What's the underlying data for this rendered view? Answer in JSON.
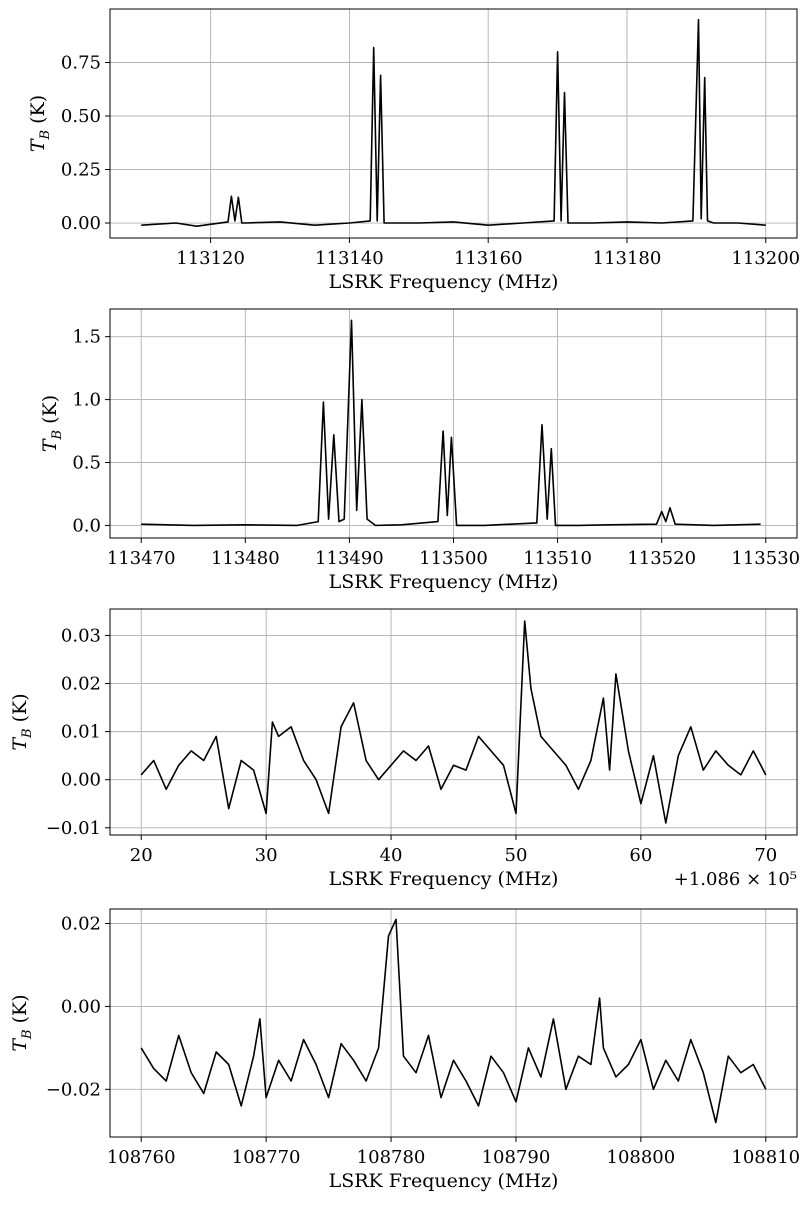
{
  "chart_data": [
    {
      "type": "line",
      "xlabel": "LSRK Frequency (MHz)",
      "ylabel": "T_B (K)",
      "xlim": [
        113105.5,
        113204.5
      ],
      "ylim": [
        -0.07,
        1.0
      ],
      "xticks": [
        113120,
        113140,
        113160,
        113180,
        113200
      ],
      "yticks": [
        0.0,
        0.25,
        0.5,
        0.75
      ],
      "xtick_labels": [
        "113120",
        "113140",
        "113160",
        "113180",
        "113200"
      ],
      "ytick_labels": [
        "0.00",
        "0.25",
        "0.50",
        "0.75"
      ],
      "offset_label": "",
      "grid": true,
      "series": [
        {
          "x": [
            113110,
            113115,
            113118,
            113122.5,
            113123.0,
            113123.5,
            113124.0,
            113124.5,
            113125,
            113130,
            113135,
            113140,
            113143.0,
            113143.5,
            113144.0,
            113144.5,
            113145.0,
            113150,
            113155,
            113160,
            113165,
            113169.5,
            113170.0,
            113170.5,
            113171.0,
            113171.5,
            113175,
            113180,
            113185,
            113189.5,
            113190.3,
            113190.7,
            113191.2,
            113191.6,
            113192.5,
            113196,
            113200
          ],
          "y": [
            -0.01,
            0.0,
            -0.015,
            0.005,
            0.125,
            0.01,
            0.12,
            0.0,
            0.0,
            0.005,
            -0.01,
            0.0,
            0.01,
            0.82,
            0.01,
            0.69,
            0.0,
            0.0,
            0.005,
            -0.01,
            0.0,
            0.01,
            0.8,
            0.01,
            0.61,
            0.0,
            0.0,
            0.005,
            0.0,
            0.01,
            0.95,
            0.02,
            0.68,
            0.01,
            0.0,
            0.0,
            -0.01
          ]
        }
      ]
    },
    {
      "type": "line",
      "xlabel": "LSRK Frequency (MHz)",
      "ylabel": "T_B (K)",
      "xlim": [
        113467,
        113533
      ],
      "ylim": [
        -0.1,
        1.72
      ],
      "xticks": [
        113470,
        113480,
        113490,
        113500,
        113510,
        113520,
        113530
      ],
      "yticks": [
        0.0,
        0.5,
        1.0,
        1.5
      ],
      "xtick_labels": [
        "113470",
        "113480",
        "113490",
        "113500",
        "113510",
        "113520",
        "113530"
      ],
      "ytick_labels": [
        "0.0",
        "0.5",
        "1.0",
        "1.5"
      ],
      "offset_label": "",
      "grid": true,
      "series": [
        {
          "x": [
            113470,
            113475,
            113480,
            113485,
            113487.0,
            113487.5,
            113488.0,
            113488.5,
            113489.0,
            113489.5,
            113490.2,
            113490.7,
            113491.2,
            113491.7,
            113492.5,
            113495,
            113498.5,
            113499.0,
            113499.4,
            113499.8,
            113500.3,
            113503,
            113508.0,
            113508.5,
            113509.0,
            113509.4,
            113509.8,
            113512,
            113515,
            113519.5,
            113520.0,
            113520.4,
            113520.8,
            113521.3,
            113525,
            113529.5
          ],
          "y": [
            0.01,
            0.0,
            0.005,
            0.0,
            0.03,
            0.98,
            0.05,
            0.72,
            0.03,
            0.05,
            1.63,
            0.12,
            1.0,
            0.05,
            0.0,
            0.005,
            0.03,
            0.75,
            0.08,
            0.7,
            0.0,
            0.0,
            0.02,
            0.8,
            0.05,
            0.61,
            0.0,
            0.0,
            0.005,
            0.01,
            0.11,
            0.03,
            0.14,
            0.01,
            0.0,
            0.01
          ]
        }
      ]
    },
    {
      "type": "line",
      "xlabel": "LSRK Frequency (MHz)",
      "ylabel": "T_B (K)",
      "xlim": [
        17.5,
        72.5
      ],
      "ylim": [
        -0.0115,
        0.0355
      ],
      "xticks": [
        20,
        30,
        40,
        50,
        60,
        70
      ],
      "yticks": [
        -0.01,
        0.0,
        0.01,
        0.02,
        0.03
      ],
      "xtick_labels": [
        "20",
        "30",
        "40",
        "50",
        "60",
        "70"
      ],
      "ytick_labels": [
        "−0.01",
        "0.00",
        "0.01",
        "0.02",
        "0.03"
      ],
      "offset_label": "+1.086 × 10⁵",
      "grid": true,
      "series": [
        {
          "x": [
            20,
            21,
            22,
            23,
            24,
            25,
            26,
            27,
            28,
            29,
            30,
            30.5,
            31,
            32,
            33,
            34,
            35,
            36,
            37,
            38,
            39,
            40,
            41,
            42,
            43,
            44,
            45,
            46,
            47,
            48,
            49,
            50,
            50.7,
            51.2,
            52,
            53,
            54,
            55,
            56,
            57,
            57.5,
            58,
            59,
            60,
            61,
            62,
            63,
            64,
            65,
            66,
            67,
            68,
            69,
            70
          ],
          "y": [
            0.001,
            0.004,
            -0.002,
            0.003,
            0.006,
            0.004,
            0.009,
            -0.006,
            0.004,
            0.002,
            -0.007,
            0.012,
            0.009,
            0.011,
            0.004,
            0.0,
            -0.007,
            0.011,
            0.016,
            0.004,
            0.0,
            0.003,
            0.006,
            0.004,
            0.007,
            -0.002,
            0.003,
            0.002,
            0.009,
            0.006,
            0.003,
            -0.007,
            0.033,
            0.019,
            0.009,
            0.006,
            0.003,
            -0.002,
            0.004,
            0.017,
            0.002,
            0.022,
            0.006,
            -0.005,
            0.005,
            -0.009,
            0.005,
            0.011,
            0.002,
            0.006,
            0.003,
            0.001,
            0.006,
            0.001
          ]
        }
      ]
    },
    {
      "type": "line",
      "xlabel": "LSRK Frequency (MHz)",
      "ylabel": "T_B (K)",
      "xlim": [
        108757.5,
        108812.5
      ],
      "ylim": [
        -0.0315,
        0.0235
      ],
      "xticks": [
        108760,
        108770,
        108780,
        108790,
        108800,
        108810
      ],
      "yticks": [
        -0.02,
        0.0,
        0.02
      ],
      "xtick_labels": [
        "108760",
        "108770",
        "108780",
        "108790",
        "108800",
        "108810"
      ],
      "ytick_labels": [
        "−0.02",
        "0.00",
        "0.02"
      ],
      "offset_label": "",
      "grid": true,
      "series": [
        {
          "x": [
            108760,
            108761,
            108762,
            108763,
            108764,
            108765,
            108766,
            108767,
            108768,
            108769,
            108769.5,
            108770,
            108771,
            108772,
            108773,
            108774,
            108775,
            108776,
            108777,
            108778,
            108779,
            108779.8,
            108780.4,
            108781,
            108782,
            108783,
            108784,
            108785,
            108786,
            108787,
            108788,
            108789,
            108790,
            108791,
            108792,
            108793,
            108794,
            108795,
            108796,
            108796.7,
            108797,
            108798,
            108799,
            108800,
            108801,
            108802,
            108803,
            108804,
            108805,
            108806,
            108807,
            108808,
            108809,
            108810
          ],
          "y": [
            -0.01,
            -0.015,
            -0.018,
            -0.007,
            -0.016,
            -0.021,
            -0.011,
            -0.014,
            -0.024,
            -0.012,
            -0.003,
            -0.022,
            -0.013,
            -0.018,
            -0.008,
            -0.014,
            -0.022,
            -0.009,
            -0.013,
            -0.018,
            -0.01,
            0.017,
            0.021,
            -0.012,
            -0.016,
            -0.007,
            -0.022,
            -0.013,
            -0.018,
            -0.024,
            -0.012,
            -0.016,
            -0.023,
            -0.01,
            -0.017,
            -0.003,
            -0.02,
            -0.012,
            -0.014,
            0.002,
            -0.01,
            -0.017,
            -0.014,
            -0.008,
            -0.02,
            -0.013,
            -0.018,
            -0.008,
            -0.016,
            -0.028,
            -0.012,
            -0.016,
            -0.014,
            -0.02
          ]
        }
      ]
    }
  ]
}
